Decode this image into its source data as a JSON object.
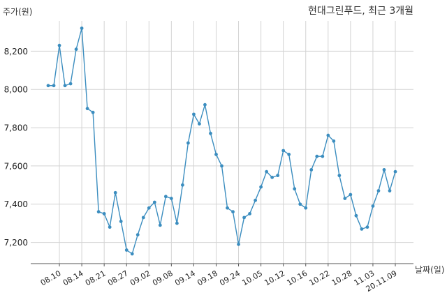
{
  "chart_data": {
    "type": "line",
    "title": "현대그린푸드, 최근 3개월",
    "ylabel": "주가(원)",
    "xlabel": "날짜(일)",
    "ylim": [
      7100,
      8320
    ],
    "y_ticks": [
      7200,
      7400,
      7600,
      7800,
      8000,
      8200
    ],
    "y_tick_labels": [
      "7,200",
      "7,400",
      "7,600",
      "7,800",
      "8,000",
      "8,200"
    ],
    "x_tick_labels": [
      "08.10",
      "08.14",
      "08.21",
      "08.27",
      "09.02",
      "09.08",
      "09.14",
      "09.18",
      "09.24",
      "10.05",
      "10.12",
      "10.16",
      "10.22",
      "10.28",
      "11.03",
      "20.11.09"
    ],
    "x_tick_indices": [
      2,
      6,
      10,
      14,
      18,
      22,
      26,
      30,
      34,
      38,
      42,
      46,
      50,
      54,
      58,
      62
    ],
    "grid": true,
    "color": "#3b8dbf",
    "series": [
      {
        "values": [
          8020,
          8020,
          8230,
          8020,
          8030,
          8210,
          8320,
          7900,
          7880,
          7360,
          7350,
          7280,
          7460,
          7310,
          7160,
          7140,
          7240,
          7330,
          7380,
          7410,
          7290,
          7440,
          7430,
          7300,
          7500,
          7720,
          7870,
          7820,
          7920,
          7770,
          7660,
          7600,
          7380,
          7360,
          7190,
          7330,
          7350,
          7420,
          7490,
          7570,
          7540,
          7550,
          7680,
          7660,
          7480,
          7400,
          7380,
          7580,
          7650,
          7650,
          7760,
          7730,
          7550,
          7430,
          7450,
          7340,
          7270,
          7280,
          7390,
          7470,
          7580,
          7470,
          7570
        ]
      }
    ]
  }
}
